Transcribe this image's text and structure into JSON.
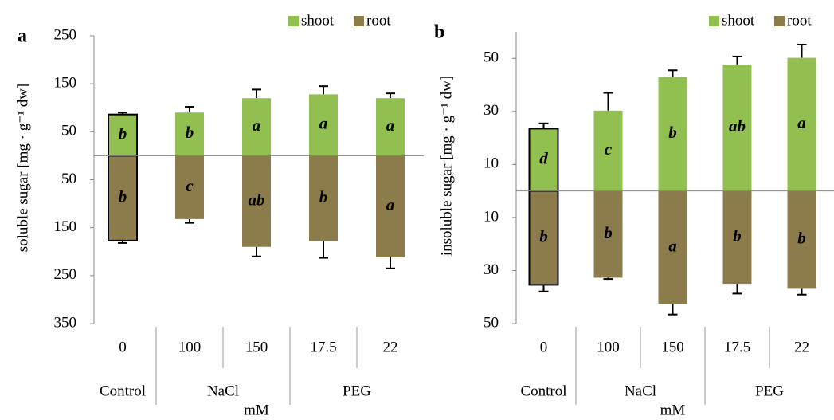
{
  "chart_data": [
    {
      "type": "bar",
      "panel": "a",
      "ylabel": "soluble sugar [mg · g⁻¹ dw]",
      "xlabel": "mM",
      "categories": [
        "0",
        "100",
        "150",
        "17.5",
        "22"
      ],
      "groups": [
        {
          "label": "Control",
          "span": 1,
          "outline": "#000000"
        },
        {
          "label": "NaCl",
          "span": 2
        },
        {
          "label": "PEG",
          "span": 2
        }
      ],
      "series": [
        {
          "name": "shoot",
          "color": "#92c050",
          "values": [
            86,
            90,
            120,
            128,
            120
          ],
          "errors": [
            4,
            12,
            18,
            17,
            10
          ],
          "labels": [
            "b",
            "b",
            "a",
            "a",
            "a"
          ]
        },
        {
          "name": "root",
          "color": "#8c7c4c",
          "values": [
            -177,
            -132,
            -190,
            -178,
            -212
          ],
          "errors": [
            5,
            8,
            20,
            35,
            23
          ],
          "labels": [
            "b",
            "c",
            "ab",
            "b",
            "a"
          ]
        }
      ],
      "ylim": [
        -350,
        250
      ],
      "yticks": [
        250,
        150,
        50,
        {
          "value": -50,
          "label": "50"
        },
        {
          "value": -150,
          "label": "150"
        },
        {
          "value": -250,
          "label": "250"
        },
        {
          "value": -350,
          "label": "350"
        }
      ],
      "legend": "upper right"
    },
    {
      "type": "bar",
      "panel": "b",
      "ylabel": "insoluble sugar [mg · g⁻¹ dw]",
      "xlabel": "mM",
      "categories": [
        "0",
        "100",
        "150",
        "17.5",
        "22"
      ],
      "groups": [
        {
          "label": "Control",
          "span": 1,
          "outline": "#000000"
        },
        {
          "label": "NaCl",
          "span": 2
        },
        {
          "label": "PEG",
          "span": 2
        }
      ],
      "series": [
        {
          "name": "shoot",
          "color": "#92c050",
          "values": [
            23.5,
            30.3,
            43,
            47.7,
            50.2
          ],
          "errors": [
            2,
            6.7,
            2.5,
            3,
            5
          ],
          "labels": [
            "d",
            "c",
            "b",
            "ab",
            "a"
          ]
        },
        {
          "name": "root",
          "color": "#8c7c4c",
          "values": [
            -35.4,
            -32.7,
            -42.6,
            -35,
            -36.6
          ],
          "errors": [
            2.5,
            0.5,
            4,
            3.7,
            2.5
          ],
          "labels": [
            "b",
            "b",
            "a",
            "b",
            "b"
          ]
        }
      ],
      "ylim": [
        -50,
        60
      ],
      "yticks": [
        50,
        30,
        10,
        {
          "value": -10,
          "label": "10"
        },
        {
          "value": -30,
          "label": "30"
        },
        {
          "value": -50,
          "label": "50"
        }
      ],
      "legend": "upper right"
    }
  ]
}
